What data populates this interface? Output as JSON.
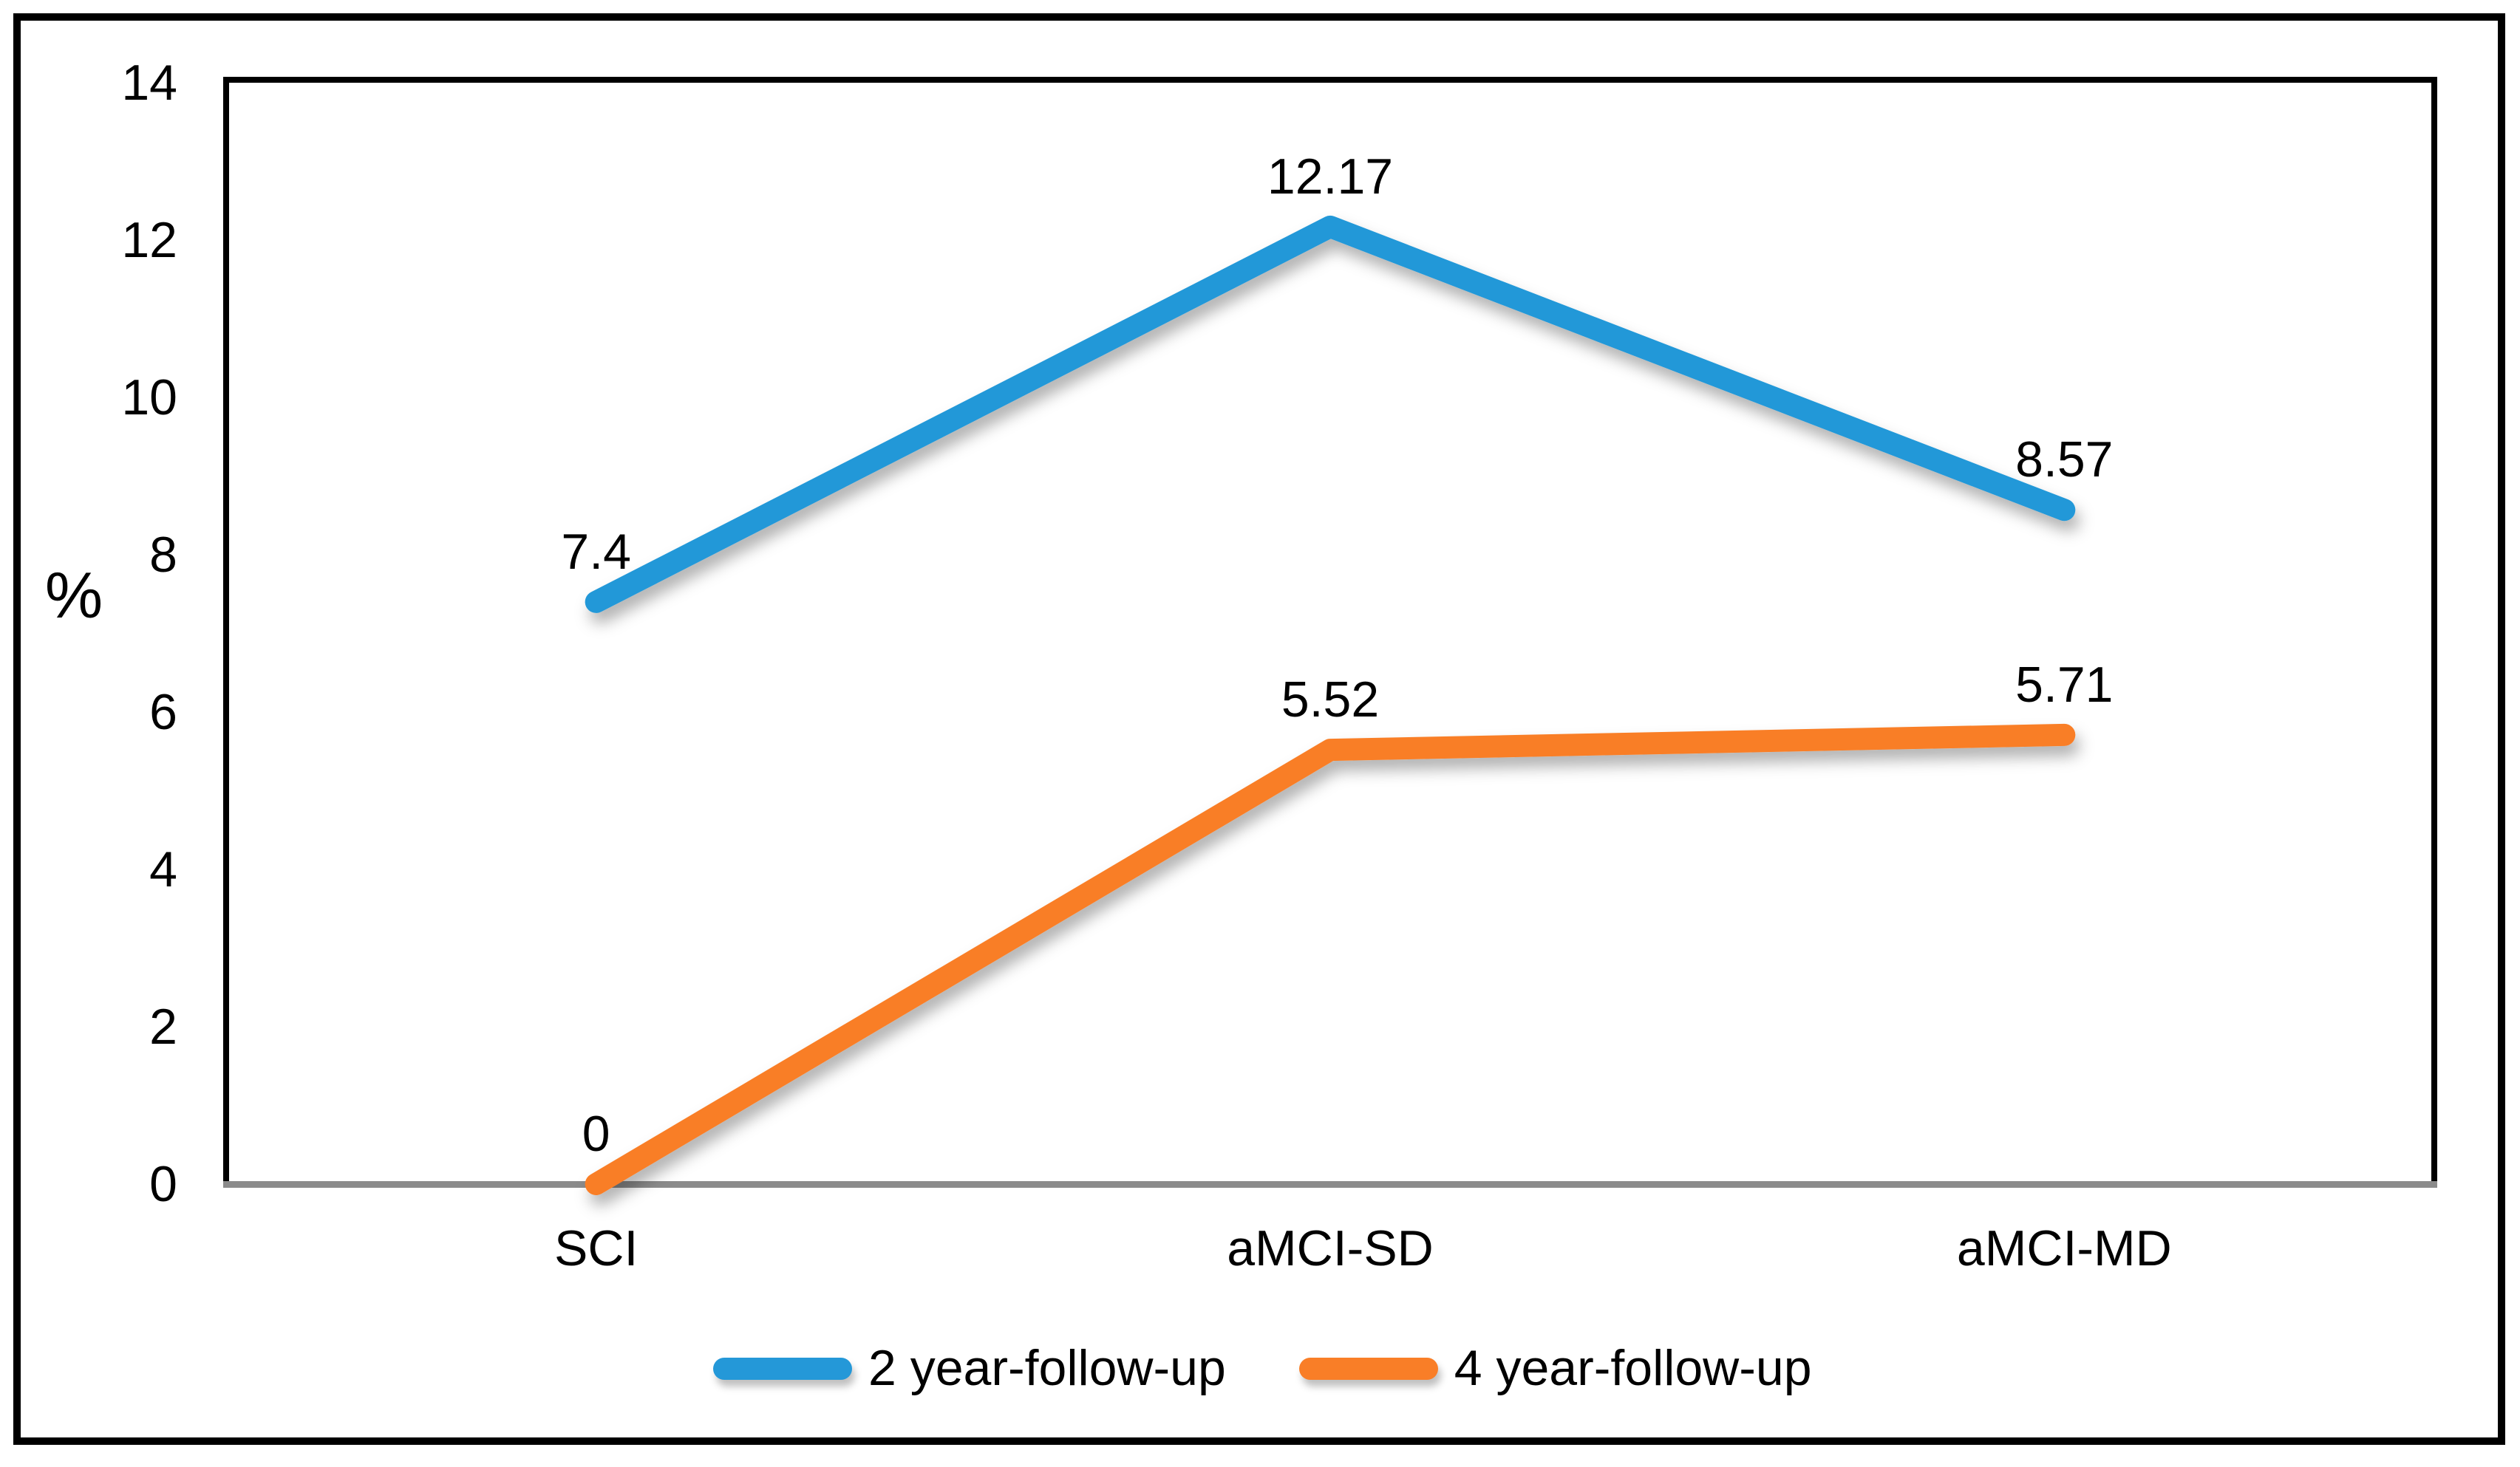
{
  "chart_data": {
    "type": "line",
    "title": "",
    "categories": [
      "SCI",
      "aMCI-SD",
      "aMCI-MD"
    ],
    "series": [
      {
        "name": "2 year-follow-up",
        "values": [
          7.4,
          12.17,
          8.57
        ],
        "color": "#2498d8"
      },
      {
        "name": "4 year-follow-up",
        "values": [
          0,
          5.52,
          5.71
        ],
        "color": "#f97e27"
      }
    ],
    "xlabel": "",
    "ylabel": "%",
    "ylim": [
      0,
      14
    ],
    "yticks": [
      0,
      2,
      4,
      6,
      8,
      10,
      12,
      14
    ],
    "grid": true,
    "data_labels": true,
    "legend_position": "bottom"
  },
  "colors": {
    "figure_border": "#000000",
    "plot_border": "#000000",
    "axis_line_gray": "#8b8b8b",
    "gridline": "#f2f2f2",
    "text": "#000000",
    "background": "#ffffff"
  }
}
